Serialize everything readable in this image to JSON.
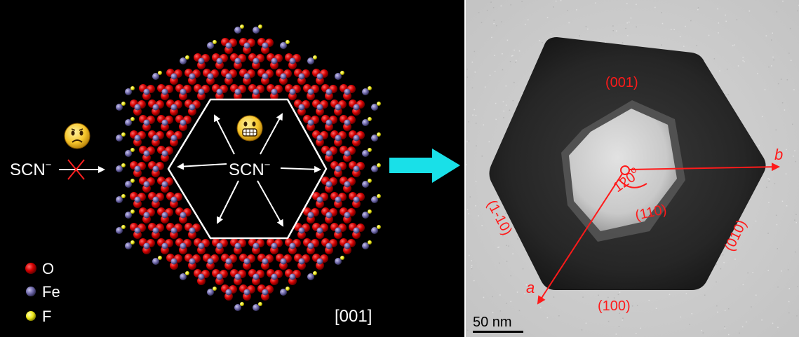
{
  "left_panel": {
    "ion_outside": "SCN",
    "ion_outside_charge": "−",
    "ion_inside": "SCN",
    "ion_inside_charge": "−",
    "zone_axis": "[001]",
    "legend": [
      {
        "symbol": "O",
        "color": "#e00000"
      },
      {
        "symbol": "Fe",
        "color": "#7b74b6"
      },
      {
        "symbol": "F",
        "color": "#f2ee20"
      }
    ],
    "emoji_blocked": "sad-face-icon",
    "emoji_open": "grin-face-icon",
    "blocked_mark_color": "#ff2020"
  },
  "transition_arrow": {
    "color": "#19e0e8"
  },
  "right_panel": {
    "facets": {
      "top": "(001)",
      "inner": "(110)",
      "left": "(1-10)",
      "right": "(010)",
      "bottom": "(100)"
    },
    "angle_label": "120",
    "angle_unit": "o",
    "axis_a": "a",
    "axis_b": "b",
    "scale_bar": "50 nm",
    "annotation_color": "#ff1a1a"
  }
}
